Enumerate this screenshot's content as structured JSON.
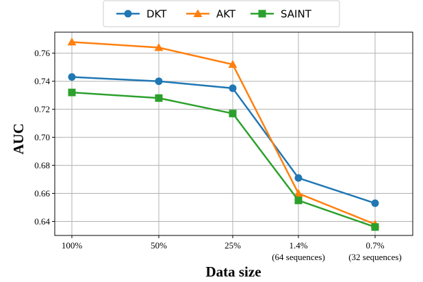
{
  "chart_data": {
    "type": "line",
    "xlabel": "Data size",
    "ylabel": "AUC",
    "categories": [
      "100%",
      "50%",
      "25%",
      "1.4%",
      "0.7%"
    ],
    "category_sublabels": [
      "",
      "",
      "",
      "(64 sequences)",
      "(32 sequences)"
    ],
    "ylim": [
      0.63,
      0.775
    ],
    "yticks": [
      0.64,
      0.66,
      0.68,
      0.7,
      0.72,
      0.74,
      0.76
    ],
    "grid": true,
    "legend_position": "top-center",
    "series": [
      {
        "name": "DKT",
        "color": "#1f77b4",
        "marker": "circle",
        "values": [
          0.743,
          0.74,
          0.735,
          0.671,
          0.653
        ]
      },
      {
        "name": "AKT",
        "color": "#ff7f0e",
        "marker": "triangle",
        "values": [
          0.768,
          0.764,
          0.752,
          0.66,
          0.638
        ]
      },
      {
        "name": "SAINT",
        "color": "#2ca02c",
        "marker": "square",
        "values": [
          0.732,
          0.728,
          0.717,
          0.655,
          0.636
        ]
      }
    ]
  }
}
